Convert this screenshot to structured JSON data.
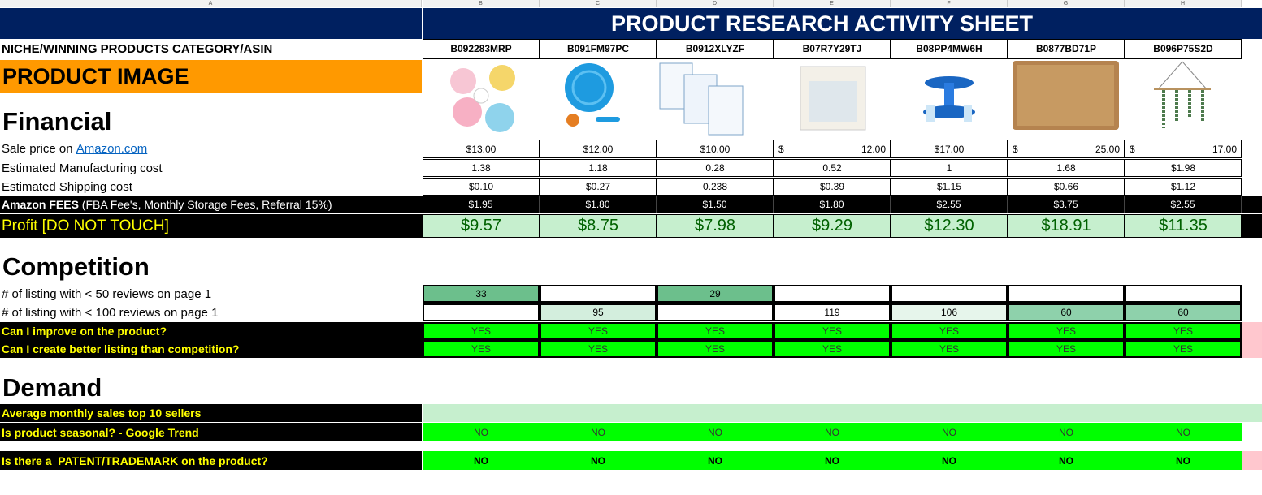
{
  "column_headers": [
    "A",
    "B",
    "C",
    "D",
    "E",
    "F",
    "G",
    "H"
  ],
  "title": "PRODUCT RESEARCH ACTIVITY SHEET",
  "rows": [
    {
      "label": "NICHE/WINNING PRODUCTS CATEGORY/ASIN",
      "values": [
        "B092283MRP",
        "B091FM97PC",
        "B0912XLYZF",
        "B07R7Y29TJ",
        "B08PP4MW6H",
        "B0877BD71P",
        "B096P75S2D"
      ]
    },
    {
      "label": "PRODUCT IMAGE"
    },
    {
      "heading": "Financial"
    },
    {
      "label": "Sale price on ",
      "link": "Amazon.com",
      "values": [
        "$13.00",
        "$12.00",
        "$10.00",
        {
          "symbol": "$",
          "amount": "12.00"
        },
        "$17.00",
        {
          "symbol": "$",
          "amount": "25.00"
        },
        {
          "symbol": "$",
          "amount": "17.00"
        }
      ]
    },
    {
      "label": "Estimated Manufacturing cost",
      "values": [
        "1.38",
        "1.18",
        "0.28",
        "0.52",
        "1",
        "1.68",
        "$1.98"
      ]
    },
    {
      "label": "Estimated Shipping cost",
      "values": [
        "$0.10",
        "$0.27",
        "0.238",
        "$0.39",
        "$1.15",
        "$0.66",
        "$1.12"
      ]
    },
    {
      "label": "Amazon FEES",
      "note": " (FBA Fee's, Monthly Storage Fees, Referral 15%)",
      "values": [
        "$1.95",
        "$1.80",
        "$1.50",
        "$1.80",
        "$2.55",
        "$3.75",
        "$2.55"
      ]
    },
    {
      "label": "Profit [DO NOT TOUCH]",
      "values": [
        "$9.57",
        "$8.75",
        "$7.98",
        "$9.29",
        "$12.30",
        "$18.91",
        "$11.35"
      ]
    },
    {
      "heading": "Competition"
    },
    {
      "label": "# of listing with < 50 reviews on page 1",
      "values": [
        "33",
        null,
        "29",
        null,
        null,
        null,
        null
      ],
      "fills": [
        "#6cbf8c",
        "#ffffff",
        "#6cbf8c",
        "#ffffff",
        "#ffffff",
        "#ffffff",
        "#ffffff"
      ]
    },
    {
      "label": "# of listing with < 100 reviews on page 1",
      "values": [
        null,
        "95",
        null,
        "119",
        "106",
        "60",
        "60"
      ],
      "fills": [
        "#ffffff",
        "#d3eedd",
        "#ffffff",
        "#ffffff",
        "#e6f5eb",
        "#8ed1ab",
        "#8ed1ab"
      ]
    },
    {
      "label": "Can I improve on the product?",
      "values": [
        "YES",
        "YES",
        "YES",
        "YES",
        "YES",
        "YES",
        "YES"
      ]
    },
    {
      "label": "Can I create better listing than competition?",
      "values": [
        "YES",
        "YES",
        "YES",
        "YES",
        "YES",
        "YES",
        "YES"
      ]
    },
    {
      "heading": "Demand"
    },
    {
      "label": "Average monthly sales top 10 sellers"
    },
    {
      "label": "Is product seasonal? - Google Trend",
      "values": [
        "NO",
        "NO",
        "NO",
        "NO",
        "NO",
        "NO",
        "NO"
      ]
    },
    {
      "label": "Is there a  PATENT/TRADEMARK on the product?",
      "values": [
        "NO",
        "NO",
        "NO",
        "NO",
        "NO",
        "NO",
        "NO"
      ]
    }
  ]
}
